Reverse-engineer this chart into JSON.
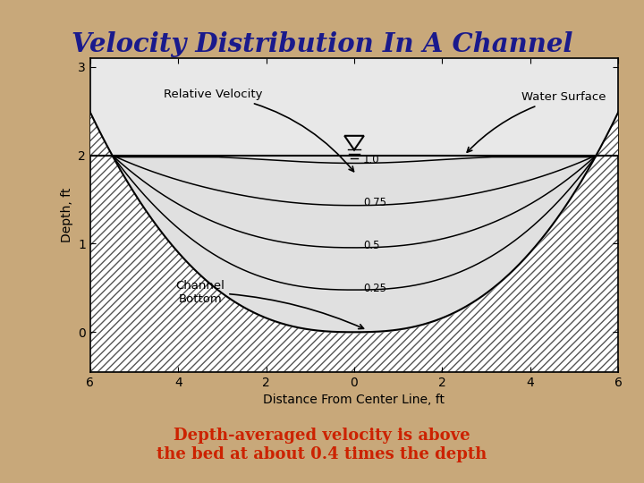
{
  "title": "Velocity Distribution In A Channel",
  "title_color": "#1a1a8c",
  "subtitle_line1": "Depth-averaged velocity is above",
  "subtitle_line2": "the bed at about 0.4 times the depth",
  "subtitle_color": "#cc2200",
  "background_color": "#c8a87a",
  "plot_bg_color": "#e8e8e8",
  "xlabel": "Distance From Center Line, ft",
  "ylabel": "Depth, ft",
  "xlim": [
    -6,
    6
  ],
  "ylim": [
    -0.45,
    3.1
  ],
  "xticks": [
    -6,
    -4,
    -2,
    0,
    2,
    4,
    6
  ],
  "xticklabels": [
    "6",
    "4",
    "2",
    "0",
    "2",
    "4",
    "6"
  ],
  "yticks": [
    0,
    1,
    2,
    3
  ],
  "water_surface_y": 2.0,
  "label_relative_velocity": "Relative Velocity",
  "label_water_surface": "Water Surface",
  "label_channel_bottom": "Channel\nBottom"
}
